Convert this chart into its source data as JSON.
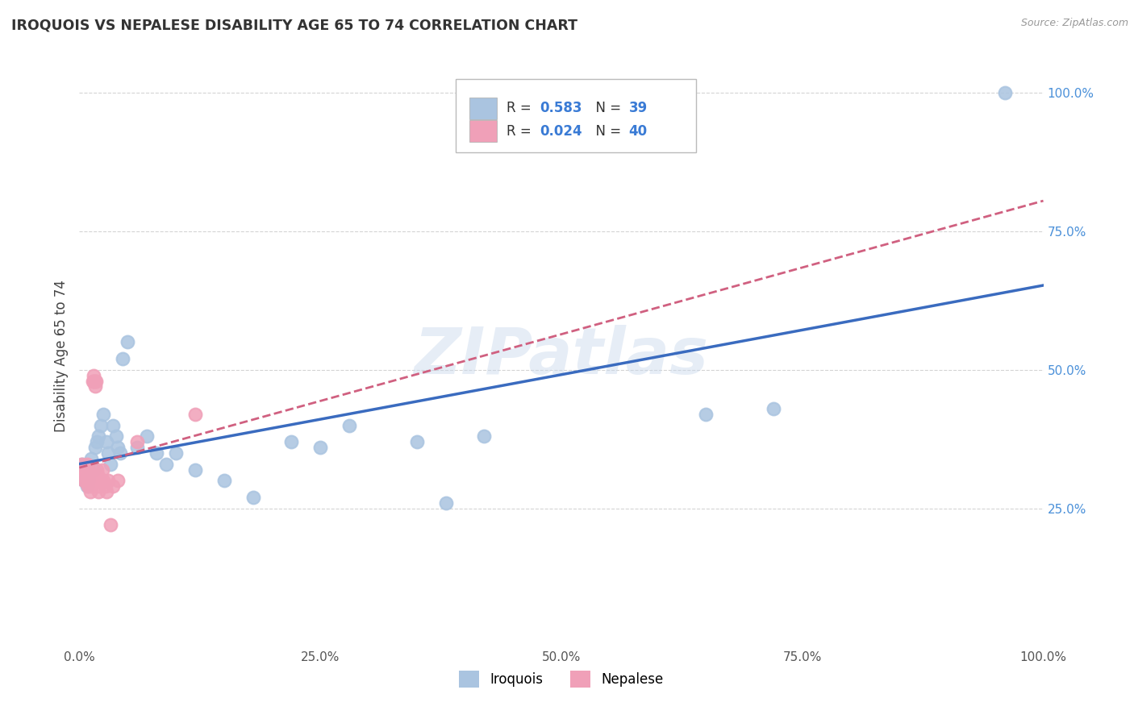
{
  "title": "IROQUOIS VS NEPALESE DISABILITY AGE 65 TO 74 CORRELATION CHART",
  "source": "Source: ZipAtlas.com",
  "ylabel": "Disability Age 65 to 74",
  "watermark": "ZIPatlas",
  "iroquois_R": 0.583,
  "iroquois_N": 39,
  "nepalese_R": 0.024,
  "nepalese_N": 40,
  "iroquois_color": "#aac4e0",
  "iroquois_line_color": "#3a6bbf",
  "nepalese_color": "#f0a0b8",
  "nepalese_line_color": "#d06080",
  "background_color": "#ffffff",
  "grid_color": "#d0d0d0",
  "xlim": [
    0.0,
    1.0
  ],
  "ylim": [
    0.0,
    1.05
  ],
  "x_ticks": [
    0.0,
    0.25,
    0.5,
    0.75,
    1.0
  ],
  "x_tick_labels": [
    "0.0%",
    "25.0%",
    "50.0%",
    "75.0%",
    "100.0%"
  ],
  "y_ticks": [
    0.25,
    0.5,
    0.75,
    1.0
  ],
  "y_tick_labels": [
    "25.0%",
    "50.0%",
    "75.0%",
    "100.0%"
  ],
  "iroquois_x": [
    0.003,
    0.005,
    0.006,
    0.008,
    0.009,
    0.01,
    0.012,
    0.015,
    0.016,
    0.018,
    0.02,
    0.022,
    0.025,
    0.028,
    0.03,
    0.032,
    0.035,
    0.038,
    0.04,
    0.042,
    0.045,
    0.05,
    0.06,
    0.07,
    0.08,
    0.09,
    0.1,
    0.12,
    0.15,
    0.18,
    0.22,
    0.25,
    0.28,
    0.35,
    0.38,
    0.42,
    0.65,
    0.72,
    0.96
  ],
  "iroquois_y": [
    0.33,
    0.3,
    0.3,
    0.29,
    0.3,
    0.31,
    0.34,
    0.32,
    0.36,
    0.37,
    0.38,
    0.4,
    0.42,
    0.37,
    0.35,
    0.33,
    0.4,
    0.38,
    0.36,
    0.35,
    0.52,
    0.55,
    0.36,
    0.38,
    0.35,
    0.33,
    0.35,
    0.32,
    0.3,
    0.27,
    0.37,
    0.36,
    0.4,
    0.37,
    0.26,
    0.38,
    0.42,
    0.43,
    1.0
  ],
  "nepalese_x": [
    0.002,
    0.003,
    0.004,
    0.005,
    0.005,
    0.006,
    0.006,
    0.007,
    0.007,
    0.008,
    0.009,
    0.009,
    0.01,
    0.01,
    0.011,
    0.012,
    0.012,
    0.013,
    0.014,
    0.015,
    0.015,
    0.016,
    0.016,
    0.017,
    0.018,
    0.018,
    0.019,
    0.02,
    0.02,
    0.022,
    0.024,
    0.025,
    0.027,
    0.028,
    0.03,
    0.032,
    0.035,
    0.04,
    0.06,
    0.12
  ],
  "nepalese_y": [
    0.33,
    0.32,
    0.31,
    0.3,
    0.31,
    0.3,
    0.31,
    0.32,
    0.31,
    0.33,
    0.3,
    0.29,
    0.31,
    0.32,
    0.28,
    0.3,
    0.29,
    0.31,
    0.48,
    0.48,
    0.49,
    0.47,
    0.48,
    0.48,
    0.32,
    0.3,
    0.31,
    0.28,
    0.29,
    0.3,
    0.32,
    0.3,
    0.29,
    0.28,
    0.3,
    0.22,
    0.29,
    0.3,
    0.37,
    0.42
  ]
}
